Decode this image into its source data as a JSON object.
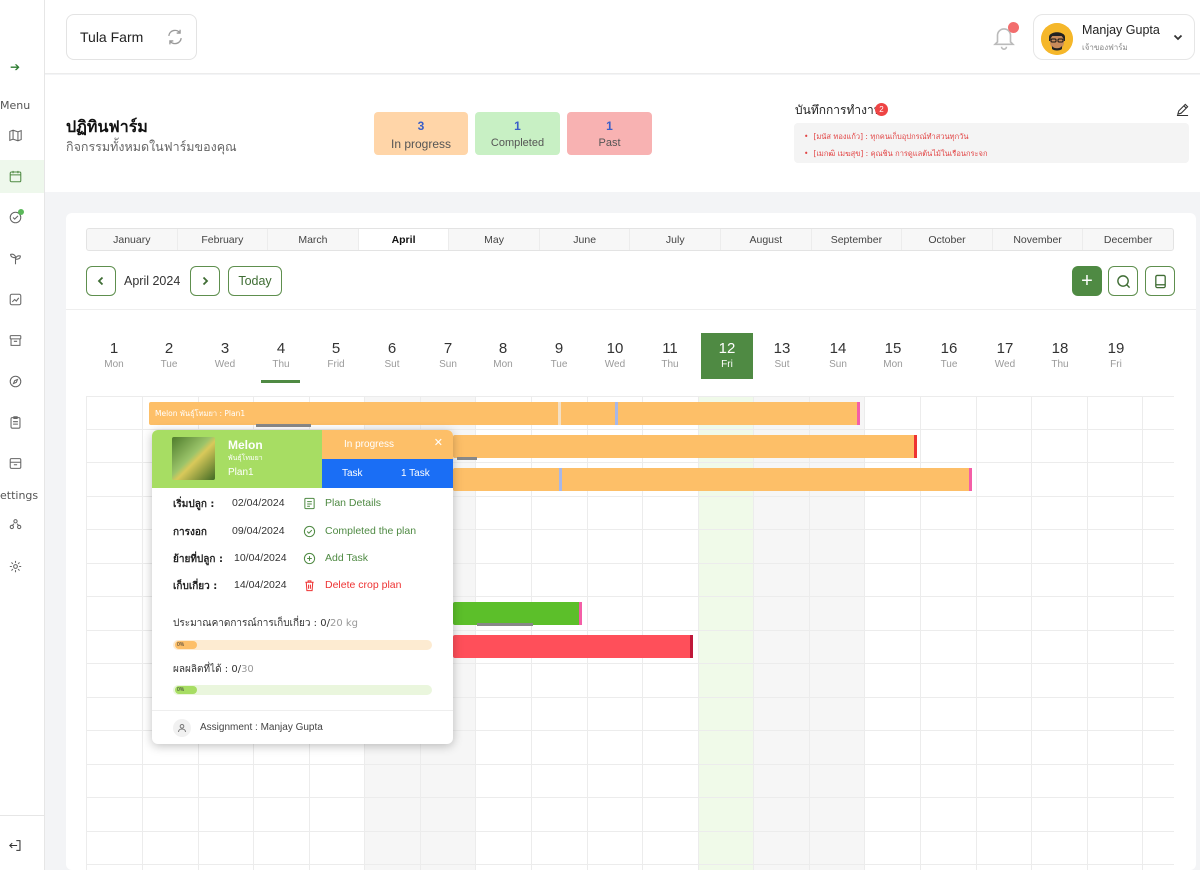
{
  "sidebar": {
    "menu_label": "Menu",
    "settings_label": "ettings"
  },
  "header": {
    "farm_name": "Tula Farm",
    "user_name": "Manjay Gupta",
    "user_role": "เจ้าของฟาร์ม"
  },
  "summary": {
    "title": "ปฏิทินฟาร์ม",
    "subtitle": "กิจกรรมทั้งหมดในฟาร์มของคุณ",
    "stats": [
      {
        "count": "3",
        "label": "In progress",
        "color": "#ffd5a8"
      },
      {
        "count": "1",
        "label": "Completed",
        "color": "#c8f0c4"
      },
      {
        "count": "1",
        "label": "Past",
        "color": "#f8b2b2"
      }
    ],
    "notes_title": "บันทึกการทำงาน",
    "notes_count": "2",
    "notes": [
      "[มนัส ทองแก้ว] : ทุกคนเก็บอุปกรณ์ทำสวนทุกวัน",
      "[เมกฒิ เมฆสุข] : คุณชิน การดูแลต้นไม้ในเรือนกระจก"
    ]
  },
  "calendar": {
    "months": [
      "January",
      "February",
      "March",
      "April",
      "May",
      "June",
      "July",
      "August",
      "September",
      "October",
      "November",
      "December"
    ],
    "active_month": "April",
    "current_label": "April 2024",
    "today_label": "Today",
    "add_label": "+",
    "days": [
      {
        "num": "1",
        "name": "Mon"
      },
      {
        "num": "2",
        "name": "Tue"
      },
      {
        "num": "3",
        "name": "Wed"
      },
      {
        "num": "4",
        "name": "Thu"
      },
      {
        "num": "5",
        "name": "Frid"
      },
      {
        "num": "6",
        "name": "Sut"
      },
      {
        "num": "7",
        "name": "Sun"
      },
      {
        "num": "8",
        "name": "Mon"
      },
      {
        "num": "9",
        "name": "Tue"
      },
      {
        "num": "10",
        "name": "Wed"
      },
      {
        "num": "11",
        "name": "Thu"
      },
      {
        "num": "12",
        "name": "Fri"
      },
      {
        "num": "13",
        "name": "Sut"
      },
      {
        "num": "14",
        "name": "Sun"
      },
      {
        "num": "15",
        "name": "Mon"
      },
      {
        "num": "16",
        "name": "Tue"
      },
      {
        "num": "17",
        "name": "Wed"
      },
      {
        "num": "18",
        "name": "Thu"
      },
      {
        "num": "19",
        "name": "Fri"
      }
    ],
    "today_day": "12",
    "bar_label": "Melon พันธุ์โทมยา : Plan1",
    "colors": {
      "in_progress": "#fdbf68",
      "completed": "#5cbf2a",
      "past": "#ff4f5a",
      "accent": "#4f8a43"
    }
  },
  "popup": {
    "crop": "Melon",
    "variety": "พันธุ์โทมยา",
    "plan": "Plan1",
    "status": "In progress",
    "task_label": "Task",
    "task_count": "1 Task",
    "rows": [
      {
        "label": "เริ่มปลูก :",
        "date": "02/04/2024",
        "action": "Plan Details",
        "icon": "document-icon"
      },
      {
        "label": "การงอก",
        "date": "09/04/2024",
        "action": "Completed the plan",
        "icon": "check-circle-icon"
      },
      {
        "label": "ย้ายที่ปลูก :",
        "date": "10/04/2024",
        "action": "Add Task",
        "icon": "plus-circle-icon"
      },
      {
        "label": "เก็บเกี่ยว :",
        "date": "14/04/2024",
        "action": "Delete crop plan",
        "icon": "trash-icon"
      }
    ],
    "estimate_label": "ประมาณคาดการณ์การเก็บเกี่ยว  :",
    "estimate_value": "0/",
    "estimate_target": "20 kg",
    "estimate_percent": "0%",
    "yield_label": "ผลผลิตที่ได้  :",
    "yield_value": "0/",
    "yield_target": "30",
    "yield_percent": "0%",
    "assignment": "Assignment : Manjay Gupta"
  }
}
